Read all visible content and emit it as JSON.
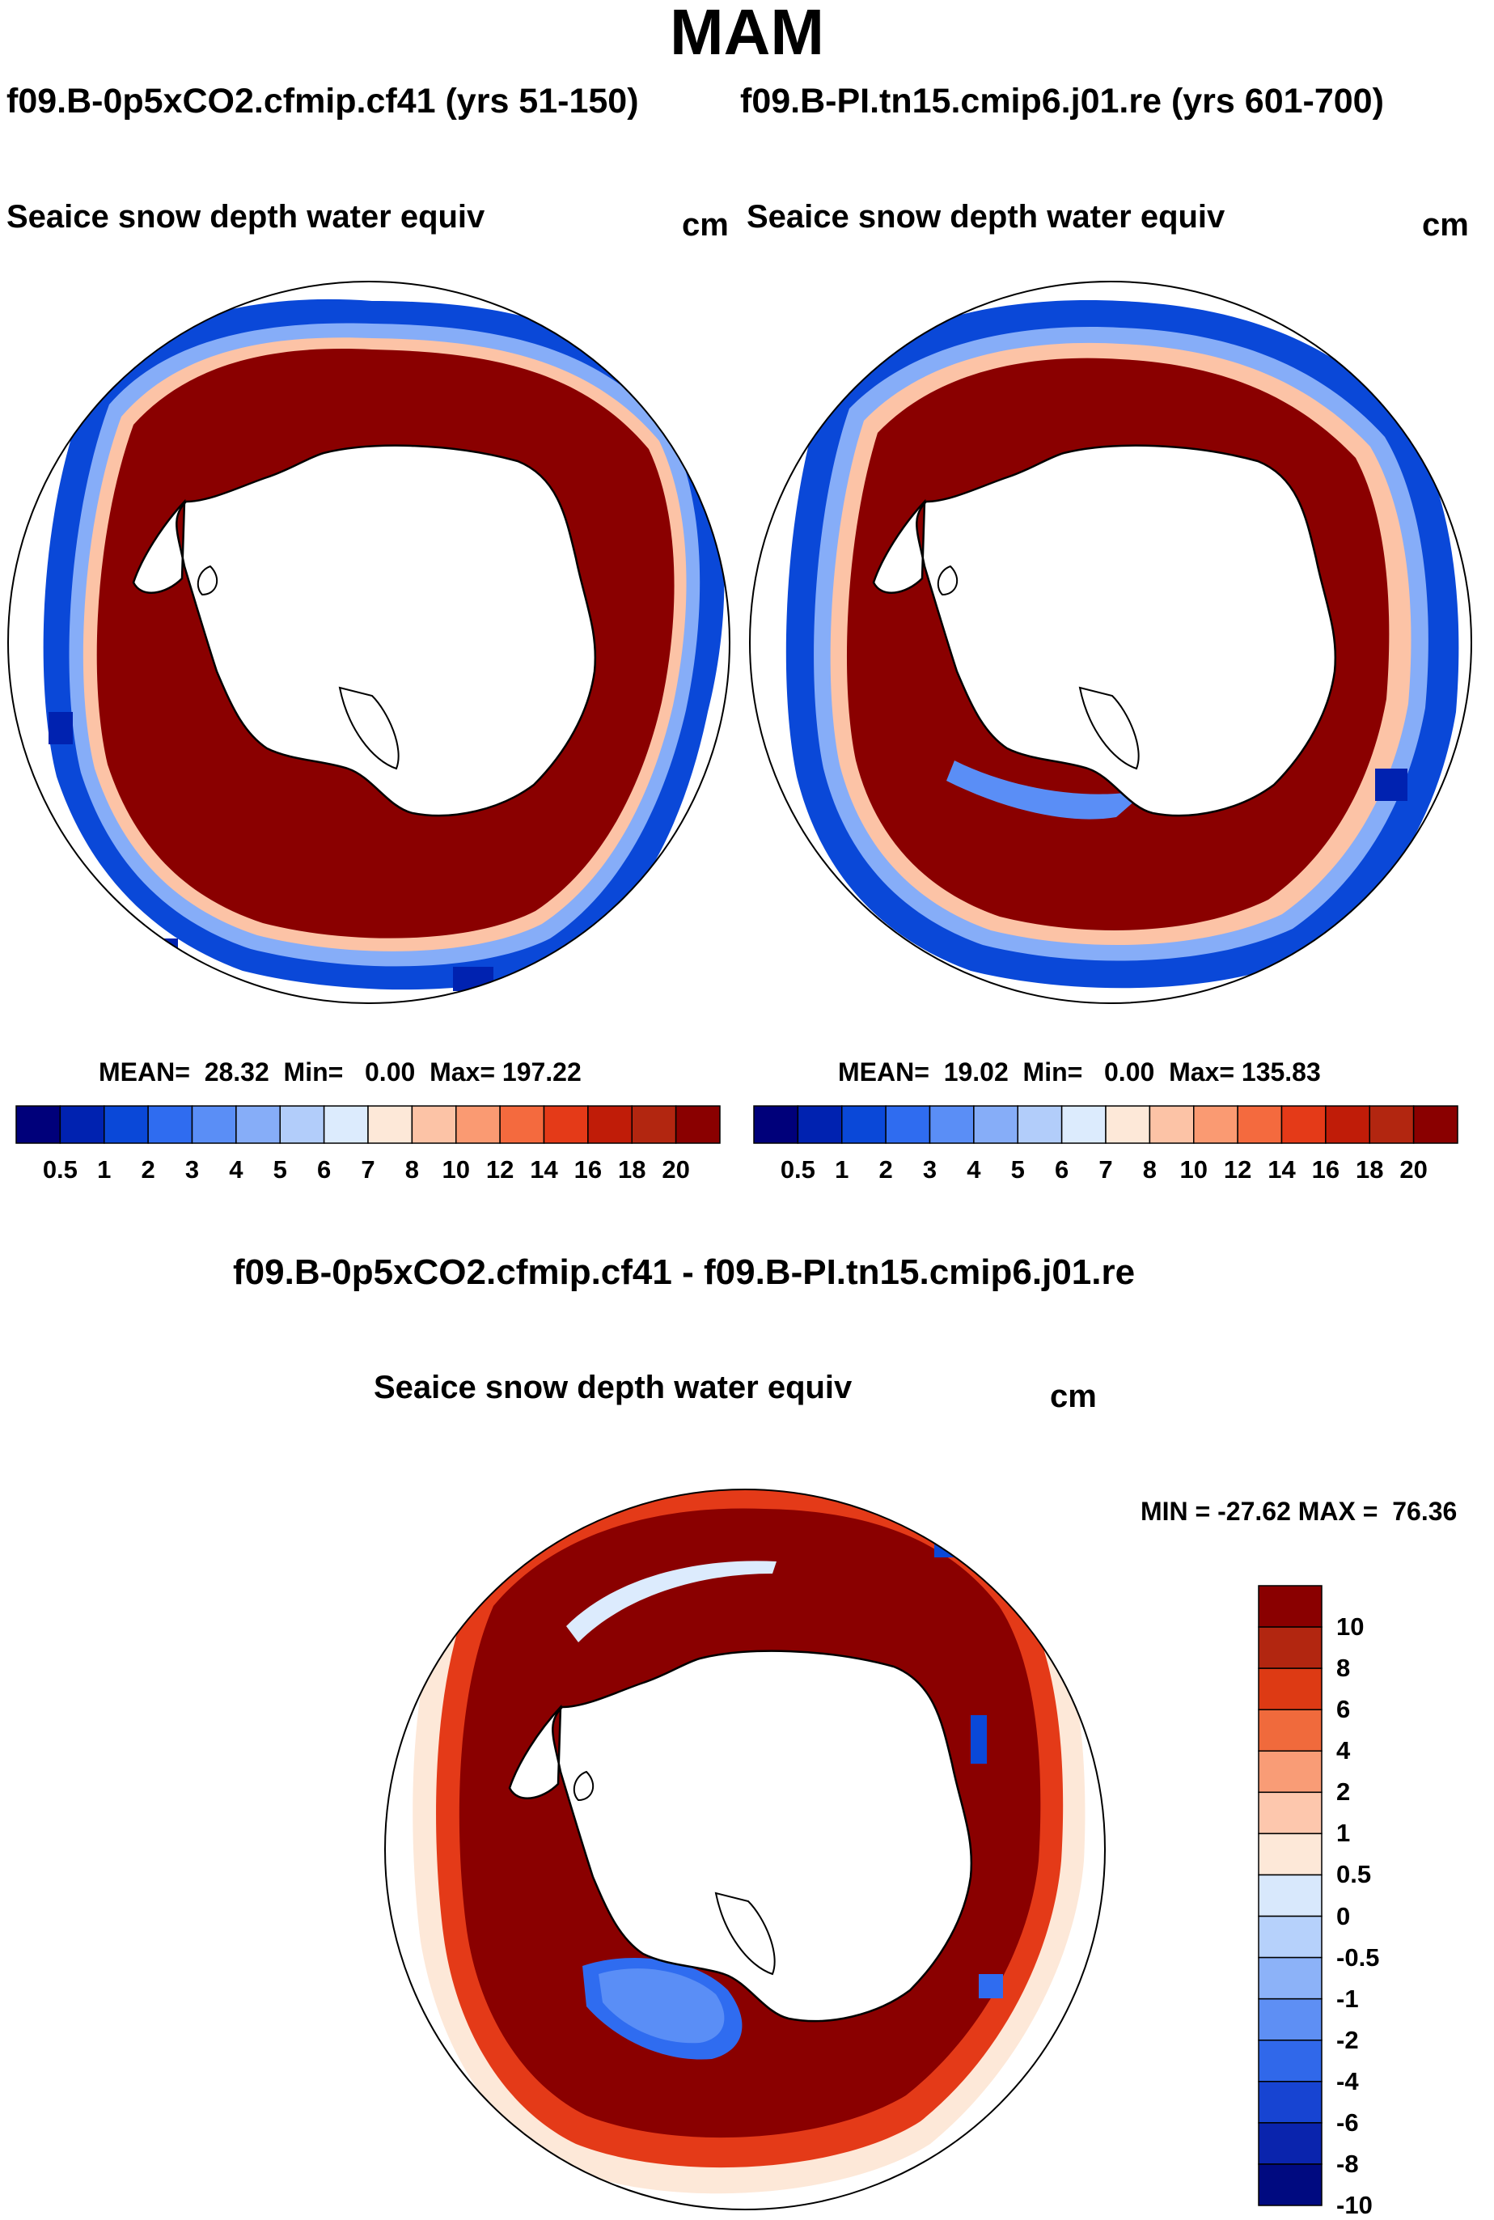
{
  "figure": {
    "season": "MAM",
    "left_run": "f09.B-0p5xCO2.cfmip.cf41 (yrs 51-150)",
    "right_run": "f09.B-PI.tn15.cmip6.j01.re (yrs 601-700)",
    "diff_title": "f09.B-0p5xCO2.cfmip.cf41 - f09.B-PI.tn15.cmip6.j01.re"
  },
  "chart_data": [
    {
      "type": "heatmap",
      "projection": "south-polar-stereographic",
      "title": "Seaice snow depth water equiv",
      "units": "cm",
      "stats": {
        "mean_label": "MEAN=",
        "mean": "28.32",
        "min_label": "Min=",
        "min": "0.00",
        "max_label": "Max=",
        "max": "197.22"
      },
      "colorbar_ticks": [
        "0.5",
        "1",
        "2",
        "3",
        "4",
        "5",
        "6",
        "7",
        "8",
        "10",
        "12",
        "14",
        "16",
        "18",
        "20"
      ],
      "colorbar_colors": [
        "#00007a",
        "#0022b0",
        "#0a48d8",
        "#2f6cf0",
        "#5a8ef6",
        "#86adf8",
        "#b2cdfa",
        "#dcebfd",
        "#fde8d8",
        "#fcc3a6",
        "#fa9a72",
        "#f46a3e",
        "#e43a18",
        "#c01c08",
        "#b22610",
        "#8a0000"
      ],
      "colorbar_orientation": "horizontal"
    },
    {
      "type": "heatmap",
      "projection": "south-polar-stereographic",
      "title": "Seaice snow depth water equiv",
      "units": "cm",
      "stats": {
        "mean_label": "MEAN=",
        "mean": "19.02",
        "min_label": "Min=",
        "min": "0.00",
        "max_label": "Max=",
        "max": "135.83"
      },
      "colorbar_ticks": [
        "0.5",
        "1",
        "2",
        "3",
        "4",
        "5",
        "6",
        "7",
        "8",
        "10",
        "12",
        "14",
        "16",
        "18",
        "20"
      ],
      "colorbar_colors": [
        "#00007a",
        "#0022b0",
        "#0a48d8",
        "#2f6cf0",
        "#5a8ef6",
        "#86adf8",
        "#b2cdfa",
        "#dcebfd",
        "#fde8d8",
        "#fcc3a6",
        "#fa9a72",
        "#f46a3e",
        "#e43a18",
        "#c01c08",
        "#b22610",
        "#8a0000"
      ],
      "colorbar_orientation": "horizontal"
    },
    {
      "type": "heatmap",
      "projection": "south-polar-stereographic",
      "title": "Seaice snow depth water equiv",
      "units": "cm",
      "stats": {
        "min_label": "MIN =",
        "min": "-27.62",
        "max_label": "MAX =",
        "max": "76.36"
      },
      "colorbar_ticks": [
        "10",
        "8",
        "6",
        "4",
        "2",
        "1",
        "0.5",
        "0",
        "-0.5",
        "-1",
        "-2",
        "-4",
        "-6",
        "-8",
        "-10"
      ],
      "colorbar_colors": [
        "#8a0000",
        "#b22610",
        "#dd3a14",
        "#f06a3c",
        "#f99c76",
        "#fdc7ad",
        "#fde8d8",
        "#d8e8fc",
        "#b6d1fb",
        "#8cb2f8",
        "#5e8ff4",
        "#3068ea",
        "#1744d2",
        "#0a24ad",
        "#000a80"
      ],
      "colorbar_orientation": "vertical"
    }
  ]
}
